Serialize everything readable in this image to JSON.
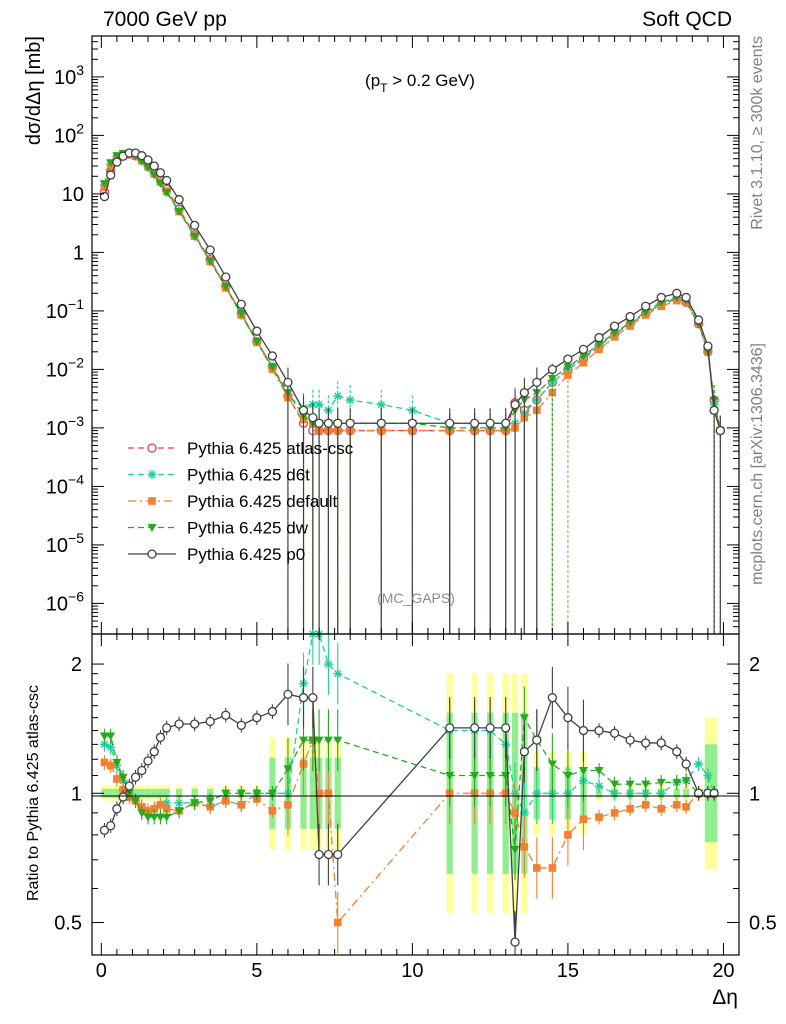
{
  "header": {
    "left": "7000 GeV pp",
    "right": "Soft QCD"
  },
  "sidebar": {
    "top": "Rivet 3.1.10, ≥ 300k events",
    "bottom": "mcplots.cern.ch [arXiv:1306.3436]"
  },
  "main": {
    "ylabel": "dσ/dΔη [mb]",
    "annotation": "(p_T > 0.2 GeV)",
    "watermark": "(MC_GAPS)"
  },
  "ratio": {
    "ylabel": "Ratio to Pythia 6.425 atlas-csc"
  },
  "colors": {
    "atlas_csc": "#e8395a",
    "d6t": "#1fce9a",
    "default": "#f28030",
    "dw": "#26a81f",
    "p0": "#404040",
    "band_yellow": "#ffff99",
    "band_green": "#90ee90"
  },
  "chart_data": [
    {
      "type": "line",
      "panel": "main",
      "xlabel": "Δη",
      "ylabel": "dσ/dΔη [mb]",
      "xlim": [
        -0.3,
        20.5
      ],
      "ylim": [
        3e-07,
        5000
      ],
      "yscale": "log",
      "ytick_labels": [
        "10^-6",
        "10^-5",
        "10^-4",
        "10^-3",
        "10^-2",
        "10^-1",
        "1",
        "10",
        "10^2",
        "10^3"
      ],
      "xtick_labels": [
        "0",
        "5",
        "10",
        "15",
        "20"
      ],
      "legend_position": "middle-left",
      "x": [
        0.1,
        0.3,
        0.5,
        0.7,
        0.9,
        1.1,
        1.3,
        1.5,
        1.7,
        1.9,
        2.1,
        2.5,
        3.0,
        3.5,
        4.0,
        4.5,
        5.0,
        5.5,
        6.0,
        6.5,
        6.8,
        7.0,
        7.3,
        7.6,
        8.0,
        9.0,
        10.0,
        11.2,
        12.0,
        12.5,
        13.0,
        13.3,
        13.6,
        14.0,
        14.5,
        15.0,
        15.5,
        16.0,
        16.5,
        17.0,
        17.5,
        18.0,
        18.5,
        18.8,
        19.2,
        19.5,
        19.7,
        19.9
      ],
      "series": [
        {
          "name": "Pythia 6.425 atlas-csc",
          "color": "#e8395a",
          "line": "dashed",
          "marker": "open-circle",
          "values": [
            11,
            25,
            38,
            45,
            48,
            46,
            40,
            32,
            24,
            17,
            12,
            5.5,
            2.0,
            0.75,
            0.26,
            0.09,
            0.03,
            0.011,
            0.0035,
            0.0012,
            0.0009,
            0.0009,
            0.0009,
            0.0009,
            0.0009,
            0.0009,
            0.0009,
            0.0009,
            0.0009,
            0.0009,
            0.0009,
            0.0027,
            0.002,
            0.003,
            0.006,
            0.01,
            0.015,
            0.025,
            0.04,
            0.06,
            0.09,
            0.13,
            0.16,
            0.14,
            0.06,
            0.02,
            0.003,
            0.0009
          ]
        },
        {
          "name": "Pythia 6.425 d6t",
          "color": "#1fce9a",
          "line": "dashed",
          "marker": "star",
          "values": [
            14,
            32,
            44,
            48,
            48,
            44,
            37,
            29,
            22,
            16,
            11,
            5.2,
            1.9,
            0.7,
            0.25,
            0.085,
            0.03,
            0.011,
            0.0035,
            0.0022,
            0.0025,
            0.0025,
            0.002,
            0.0035,
            0.003,
            0.0025,
            0.002,
            0.0012,
            0.0012,
            0.0012,
            0.0012,
            0.0012,
            0.0018,
            0.003,
            0.006,
            0.01,
            0.016,
            0.026,
            0.04,
            0.06,
            0.09,
            0.13,
            0.17,
            0.15,
            0.07,
            0.022,
            0.0025,
            0.0009
          ]
        },
        {
          "name": "Pythia 6.425 default",
          "color": "#f28030",
          "line": "dashdot",
          "marker": "square",
          "values": [
            13,
            29,
            41,
            46,
            47,
            44,
            37,
            29,
            22,
            16,
            11,
            5.0,
            1.9,
            0.7,
            0.25,
            0.085,
            0.029,
            0.01,
            0.0033,
            0.0014,
            0.0012,
            0.0009,
            0.0009,
            0.0009,
            0.0009,
            0.0009,
            0.0009,
            0.0009,
            0.0009,
            0.0009,
            0.0009,
            0.001,
            0.0015,
            0.002,
            0.004,
            0.008,
            0.013,
            0.022,
            0.036,
            0.055,
            0.085,
            0.12,
            0.15,
            0.14,
            0.06,
            0.02,
            0.002,
            0.0009
          ]
        },
        {
          "name": "Pythia 6.425 dw",
          "color": "#26a81f",
          "line": "dashed",
          "marker": "triangle-down",
          "values": [
            15,
            34,
            45,
            49,
            48,
            44,
            36,
            28,
            21,
            15,
            10.5,
            5.0,
            1.9,
            0.72,
            0.26,
            0.09,
            0.03,
            0.011,
            0.004,
            0.0016,
            0.0012,
            0.0012,
            0.0012,
            0.0012,
            0.0012,
            0.0012,
            0.0012,
            0.001,
            0.001,
            0.001,
            0.001,
            0.002,
            0.003,
            0.004,
            0.007,
            0.011,
            0.017,
            0.027,
            0.042,
            0.063,
            0.095,
            0.14,
            0.17,
            0.15,
            0.06,
            0.02,
            0.003,
            0.0009
          ]
        },
        {
          "name": "Pythia 6.425 p0",
          "color": "#404040",
          "line": "solid",
          "marker": "open-circle",
          "values": [
            9,
            21,
            35,
            44,
            50,
            50,
            45,
            38,
            30,
            23,
            17,
            8.0,
            2.9,
            1.1,
            0.38,
            0.13,
            0.045,
            0.017,
            0.006,
            0.002,
            0.0015,
            0.0012,
            0.0012,
            0.0012,
            0.0012,
            0.0012,
            0.0012,
            0.0012,
            0.0012,
            0.0012,
            0.0012,
            0.0025,
            0.004,
            0.006,
            0.01,
            0.015,
            0.022,
            0.035,
            0.055,
            0.08,
            0.12,
            0.17,
            0.2,
            0.17,
            0.07,
            0.025,
            0.002,
            0.0009
          ]
        }
      ]
    },
    {
      "type": "line",
      "panel": "ratio",
      "xlabel": "Δη",
      "ylabel": "Ratio to Pythia 6.425 atlas-csc",
      "xlim": [
        -0.3,
        20.5
      ],
      "ylim": [
        0.42,
        2.35
      ],
      "yscale": "log",
      "ytick_labels": [
        "0.5",
        "1",
        "2"
      ],
      "reference": 1,
      "x": [
        0.1,
        0.3,
        0.5,
        0.7,
        0.9,
        1.1,
        1.3,
        1.5,
        1.7,
        1.9,
        2.1,
        2.5,
        3.0,
        3.5,
        4.0,
        4.5,
        5.0,
        5.5,
        6.0,
        6.5,
        6.8,
        7.0,
        7.3,
        7.6,
        11.2,
        12.0,
        12.5,
        13.0,
        13.3,
        13.6,
        14.0,
        14.5,
        15.0,
        15.5,
        16.0,
        16.5,
        17.0,
        17.5,
        18.0,
        18.5,
        18.8,
        19.2,
        19.5,
        19.7
      ],
      "series": [
        {
          "name": "Pythia 6.425 d6t",
          "values": [
            1.3,
            1.28,
            1.16,
            1.07,
            1.0,
            0.96,
            0.93,
            0.91,
            0.92,
            0.94,
            0.95,
            0.95,
            0.95,
            0.93,
            0.96,
            0.94,
            1.0,
            1.0,
            1.0,
            1.8,
            2.4,
            2.4,
            2.0,
            1.9,
            1.4,
            1.4,
            1.4,
            1.3,
            1.0,
            0.9,
            1.0,
            1.0,
            1.0,
            1.07,
            1.04,
            1.0,
            1.0,
            1.0,
            1.0,
            1.06,
            1.07,
            1.17,
            1.1,
            1.0
          ]
        },
        {
          "name": "Pythia 6.425 default",
          "values": [
            1.18,
            1.16,
            1.08,
            1.02,
            0.98,
            0.96,
            0.93,
            0.91,
            0.92,
            0.94,
            0.92,
            0.91,
            0.95,
            0.93,
            0.96,
            0.94,
            0.97,
            0.91,
            0.94,
            1.17,
            1.33,
            1.0,
            1.0,
            0.5,
            1.0,
            1.0,
            1.0,
            1.0,
            0.9,
            0.75,
            0.67,
            0.67,
            0.8,
            0.87,
            0.88,
            0.9,
            0.92,
            0.94,
            0.92,
            0.94,
            0.93,
            1.0,
            1.0,
            1.0
          ]
        },
        {
          "name": "Pythia 6.425 dw",
          "values": [
            1.36,
            1.36,
            1.18,
            1.09,
            1.0,
            0.96,
            0.9,
            0.88,
            0.88,
            0.88,
            0.88,
            0.91,
            0.95,
            0.96,
            1.0,
            1.0,
            1.0,
            1.0,
            1.14,
            1.33,
            1.33,
            1.33,
            1.33,
            1.33,
            1.1,
            1.1,
            1.1,
            1.1,
            0.74,
            1.5,
            1.33,
            1.17,
            1.1,
            1.13,
            1.13,
            1.05,
            1.05,
            1.05,
            1.06,
            1.06,
            1.07,
            1.0,
            1.0,
            1.0
          ]
        },
        {
          "name": "Pythia 6.425 p0",
          "values": [
            0.82,
            0.84,
            0.92,
            0.98,
            1.04,
            1.09,
            1.13,
            1.19,
            1.25,
            1.35,
            1.42,
            1.45,
            1.45,
            1.47,
            1.52,
            1.44,
            1.5,
            1.55,
            1.7,
            1.67,
            1.67,
            0.72,
            0.72,
            0.72,
            1.42,
            1.42,
            1.42,
            1.42,
            0.45,
            1.25,
            1.33,
            1.67,
            1.5,
            1.4,
            1.4,
            1.38,
            1.33,
            1.31,
            1.31,
            1.25,
            1.17,
            1.0,
            1.0,
            1.0
          ]
        }
      ]
    }
  ]
}
